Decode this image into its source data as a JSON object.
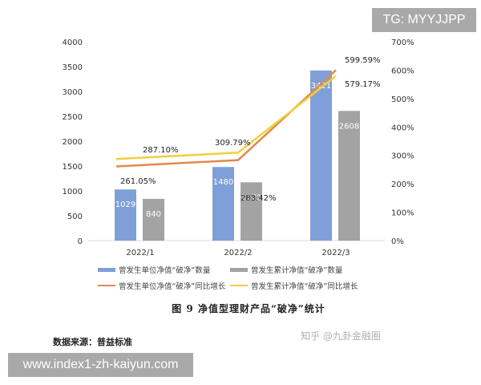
{
  "watermarks": {
    "top_right": "TG: MYYJJPP",
    "bottom_left": "www.index1-zh-kaiyun.com",
    "zhihu": "知乎 @九卦金融圈"
  },
  "caption": "图 9   净值型理财产品“破净”统计",
  "source": "数据来源：普益标准",
  "chart_data": {
    "type": "bar",
    "title": "净值型理财产品“破净”统计",
    "categories": [
      "2022/1",
      "2022/2",
      "2022/3"
    ],
    "series": [
      {
        "name": "曾发生单位净值“破净”数量",
        "type": "bar",
        "axis": "left",
        "color": "#7f9fd8",
        "values": [
          1029,
          1480,
          3421
        ]
      },
      {
        "name": "曾发生累计净值“破净”数量",
        "type": "bar",
        "axis": "left",
        "color": "#a3a3a3",
        "values": [
          840,
          1172,
          2608
        ]
      },
      {
        "name": "曾发生单位净值“破净”同比增长",
        "type": "line",
        "axis": "right",
        "color": "#e08a4c",
        "values": [
          261.05,
          283.42,
          599.59
        ],
        "labels": [
          "261.05%",
          "283.42%",
          "599.59%"
        ]
      },
      {
        "name": "曾发生累计净值“破净”同比增长",
        "type": "line",
        "axis": "right",
        "color": "#f2cf3c",
        "values": [
          287.1,
          309.79,
          579.17
        ],
        "labels": [
          "287.10%",
          "309.79%",
          "579.17%"
        ]
      }
    ],
    "left_axis": {
      "min": 0,
      "max": 4000,
      "ticks": [
        "0",
        "500",
        "1000",
        "1500",
        "2000",
        "2500",
        "3000",
        "3500",
        "4000"
      ]
    },
    "right_axis": {
      "min": 0,
      "max": 700,
      "ticks": [
        "0%",
        "100%",
        "200%",
        "300%",
        "400%",
        "500%",
        "600%",
        "700%"
      ]
    },
    "xlabel": "",
    "ylabel": "",
    "grid": false,
    "legend_position": "bottom"
  }
}
